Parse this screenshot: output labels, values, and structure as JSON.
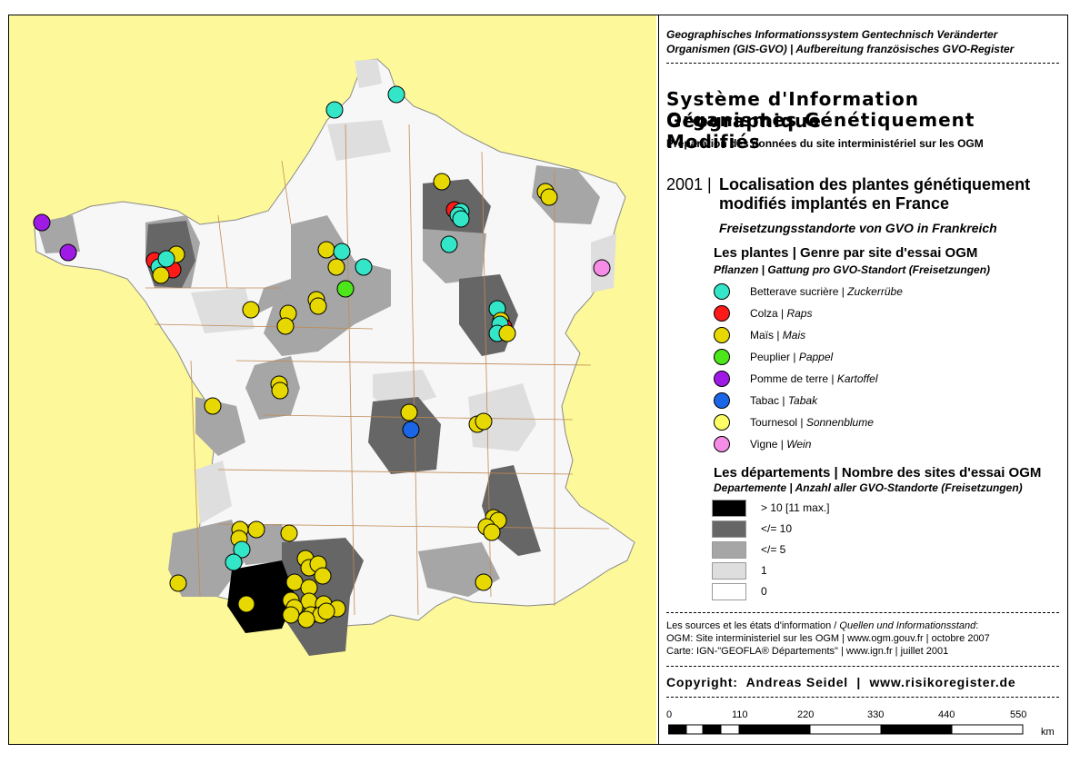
{
  "header": {
    "german_title_line1": "Geographisches Informationssystem Gentechnisch Veränderter",
    "german_title_line2": "Organismen (GIS-GVO) | Aufbereitung französisches GVO-Register",
    "main_title_line1": "Système d'Information Géographique",
    "main_title_line2": "Organismes Génétiquement Modifiés",
    "subtitle": "Préparation des données du site interministériel sur les OGM"
  },
  "map_title": {
    "year": "2001 |",
    "line1": "Localisation des plantes génétiquement",
    "line2": "modifiés implantés en France",
    "german": "Freisetzungsstandorte von GVO in Frankreich"
  },
  "plants_legend": {
    "heading": "Les plantes | Genre par site d'essai OGM",
    "heading_de": "Pflanzen | Gattung pro GVO-Standort (Freisetzungen)",
    "items": [
      {
        "fr": "Betterave sucrière | ",
        "de": "Zuckerrübe",
        "color": "#33e6c8"
      },
      {
        "fr": "Colza | ",
        "de": "Raps",
        "color": "#ff1a1a"
      },
      {
        "fr": "Maïs | ",
        "de": "Mais",
        "color": "#e6d800"
      },
      {
        "fr": "Peuplier | ",
        "de": "Pappel",
        "color": "#4de61a"
      },
      {
        "fr": "Pomme de terre | ",
        "de": "Kartoffel",
        "color": "#a01ae6"
      },
      {
        "fr": "Tabac | ",
        "de": "Tabak",
        "color": "#1a66e6"
      },
      {
        "fr": "Tournesol | ",
        "de": "Sonnenblume",
        "color": "#ffff66"
      },
      {
        "fr": "Vigne | ",
        "de": "Wein",
        "color": "#f58ce6"
      }
    ]
  },
  "departments_legend": {
    "heading": "Les départements | Nombre des sites d'essai OGM",
    "heading_de": "Departemente | Anzahl aller GVO-Standorte (Freisetzungen)",
    "classes": [
      {
        "label": "> 10  [11 max.]",
        "color": "#000000"
      },
      {
        "label": "</= 10",
        "color": "#666666"
      },
      {
        "label": "</= 5",
        "color": "#a6a6a6"
      },
      {
        "label": "1",
        "color": "#dedede"
      },
      {
        "label": "0",
        "color": "#ffffff"
      }
    ]
  },
  "sources": {
    "line1_fr": "Les sources et les états d'information / ",
    "line1_de": "Quellen und Informationsstand",
    "line1_end": ":",
    "line2": "OGM: Site interministeriel sur les OGM | www.ogm.gouv.fr | octobre 2007",
    "line3": "Carte: IGN-\"GEOFLA® Départements\" | www.ign.fr | juillet 2001"
  },
  "copyright": "Copyright:  Andreas Seidel  |  www.risikoregister.de",
  "scale_bar": {
    "labels": [
      "0",
      "110",
      "220",
      "330",
      "440",
      "550"
    ],
    "unit": "km"
  },
  "colors": {
    "sea": "#fdf99a",
    "land": "#f7f7f7",
    "border": "#c08a55",
    "class_max": "#000000",
    "class_le10": "#666666",
    "class_le5": "#a6a6a6",
    "class_1": "#dedede"
  }
}
